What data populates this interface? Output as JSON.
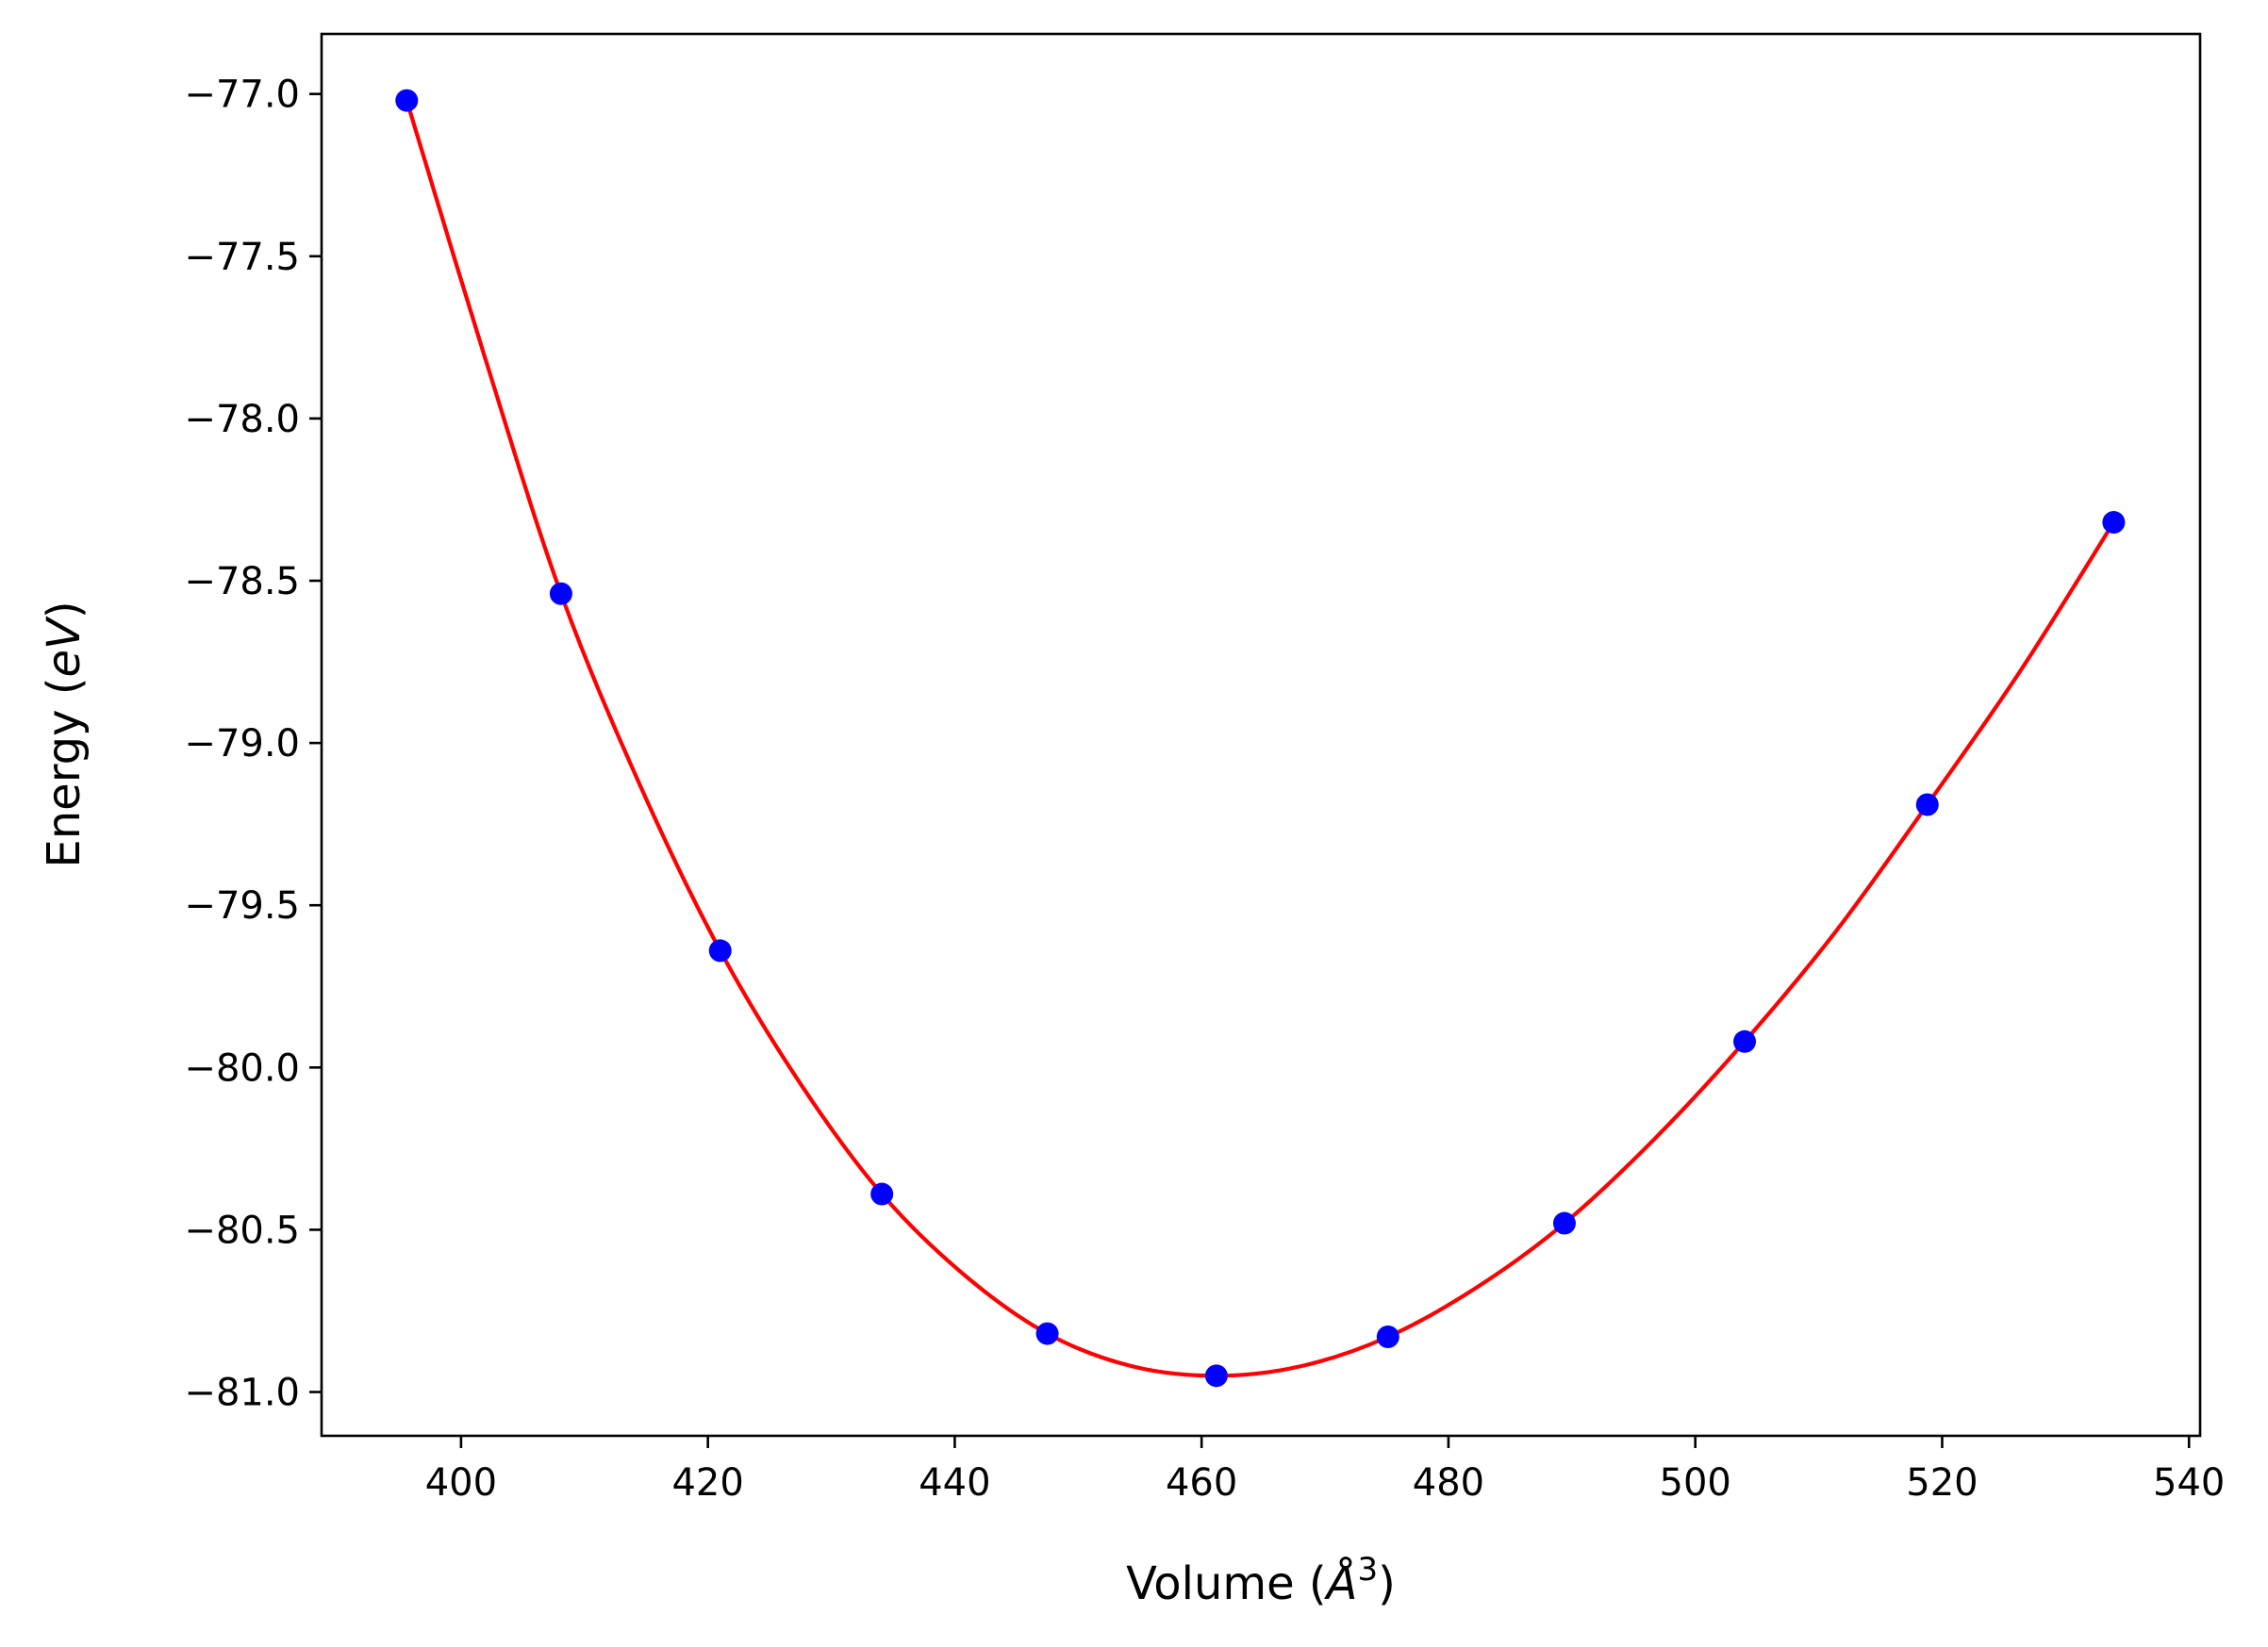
{
  "chart_data": {
    "type": "scatter",
    "title": "",
    "xlabel_prefix": "Volume (",
    "xlabel_symbol": "Å",
    "xlabel_power": "3",
    "xlabel_suffix": ")",
    "ylabel_prefix": "Energy (",
    "ylabel_unit": "eV",
    "ylabel_suffix": ")",
    "xlim": [
      388.7,
      540.9
    ],
    "ylim": [
      -81.135,
      -76.815
    ],
    "xticks": [
      400,
      420,
      440,
      460,
      480,
      500,
      520,
      540
    ],
    "xtick_labels": [
      "400",
      "420",
      "440",
      "460",
      "480",
      "500",
      "520",
      "540"
    ],
    "yticks": [
      -77.0,
      -77.5,
      -78.0,
      -78.5,
      -79.0,
      -79.5,
      -80.0,
      -80.5,
      -81.0
    ],
    "ytick_labels": [
      "−77.0",
      "−77.5",
      "−78.0",
      "−78.5",
      "−79.0",
      "−79.5",
      "−80.0",
      "−80.5",
      "−81.0"
    ],
    "grid": false,
    "series": [
      {
        "kind": "points",
        "color": "#0000ff",
        "x": [
          395.6,
          408.1,
          421.0,
          434.1,
          447.5,
          461.2,
          475.1,
          489.4,
          504.0,
          518.8,
          533.9
        ],
        "y": [
          -77.02,
          -78.54,
          -79.64,
          -80.39,
          -80.82,
          -80.95,
          -80.83,
          -80.48,
          -79.92,
          -79.19,
          -78.32
        ]
      },
      {
        "kind": "fit-line",
        "color": "#ff0000",
        "x": [
          395.6,
          402.0,
          408.1,
          414.5,
          421.0,
          427.5,
          434.1,
          440.8,
          447.5,
          454.3,
          461.2,
          468.1,
          475.1,
          482.2,
          489.4,
          496.7,
          504.0,
          511.4,
          518.8,
          526.3,
          533.9
        ],
        "y": [
          -77.02,
          -77.82,
          -78.54,
          -79.13,
          -79.64,
          -80.05,
          -80.39,
          -80.64,
          -80.82,
          -80.92,
          -80.95,
          -80.92,
          -80.83,
          -80.68,
          -80.48,
          -80.22,
          -79.92,
          -79.58,
          -79.19,
          -78.78,
          -78.32
        ]
      }
    ]
  }
}
